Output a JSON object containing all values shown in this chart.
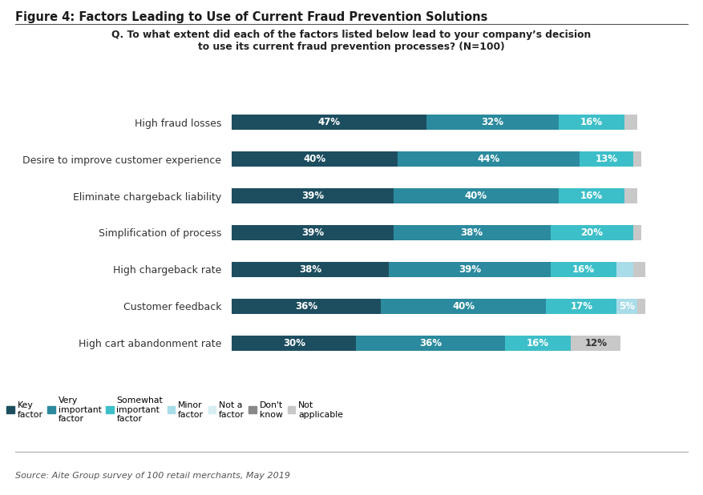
{
  "title": "Figure 4: Factors Leading to Use of Current Fraud Prevention Solutions",
  "question": "Q. To what extent did each of the factors listed below lead to your company’s decision\nto use its current fraud prevention processes? (N=100)",
  "source": "Source: Aite Group survey of 100 retail merchants, May 2019",
  "categories": [
    "High fraud losses",
    "Desire to improve customer experience",
    "Eliminate chargeback liability",
    "Simplification of process",
    "High chargeback rate",
    "Customer feedback",
    "High cart abandonment rate"
  ],
  "series": {
    "Key factor": [
      47,
      40,
      39,
      39,
      38,
      36,
      30
    ],
    "Very important factor": [
      32,
      44,
      40,
      38,
      39,
      40,
      36
    ],
    "Somewhat important factor": [
      16,
      13,
      16,
      20,
      16,
      17,
      16
    ],
    "Minor factor": [
      0,
      0,
      0,
      0,
      4,
      5,
      0
    ],
    "Not a factor": [
      0,
      0,
      0,
      0,
      0,
      0,
      0
    ],
    "Don't know": [
      0,
      0,
      0,
      0,
      0,
      0,
      0
    ],
    "Not applicable": [
      3,
      2,
      3,
      2,
      3,
      2,
      12
    ]
  },
  "colors": {
    "Key factor": "#1d4e5f",
    "Very important factor": "#2b8a9e",
    "Somewhat important factor": "#3dbfc9",
    "Minor factor": "#a8dce8",
    "Not a factor": "#d6eef2",
    "Don't know": "#888888",
    "Not applicable": "#c8c8c8"
  },
  "show_labels": {
    "Key factor": [
      true,
      true,
      true,
      true,
      true,
      true,
      true
    ],
    "Very important factor": [
      true,
      true,
      true,
      true,
      true,
      true,
      true
    ],
    "Somewhat important factor": [
      true,
      true,
      true,
      true,
      true,
      true,
      true
    ],
    "Minor factor": [
      false,
      false,
      false,
      false,
      false,
      true,
      false
    ],
    "Not a factor": [
      false,
      false,
      false,
      false,
      false,
      false,
      false
    ],
    "Don't know": [
      false,
      false,
      false,
      false,
      false,
      false,
      false
    ],
    "Not applicable": [
      false,
      false,
      false,
      false,
      false,
      false,
      true
    ]
  },
  "label_colors": {
    "Key factor": "white",
    "Very important factor": "white",
    "Somewhat important factor": "white",
    "Minor factor": "white",
    "Not applicable": "#333333"
  },
  "bar_height": 0.42,
  "figsize": [
    8.77,
    6.18
  ],
  "background_color": "#ffffff"
}
